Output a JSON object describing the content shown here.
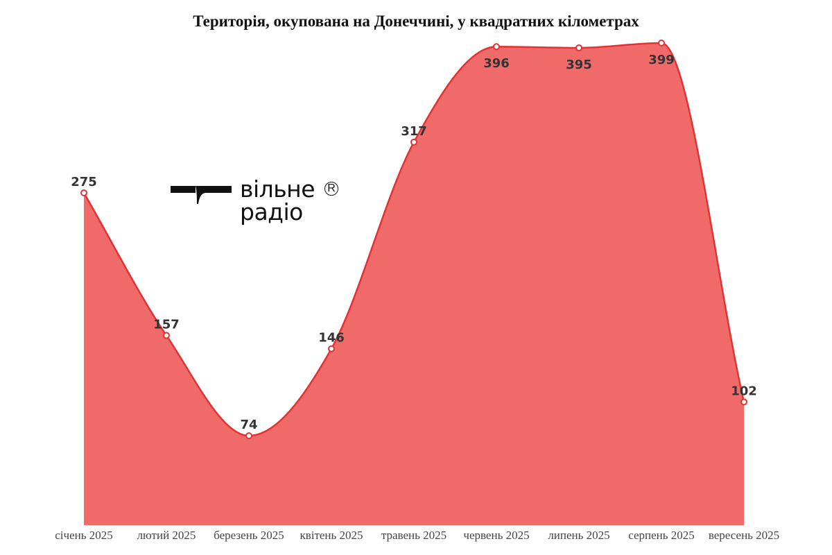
{
  "chart_data": {
    "type": "area",
    "title": "Територія, окупована на Донеччині, у квадратних кілометрах",
    "categories": [
      "січень 2025",
      "лютий 2025",
      "березень 2025",
      "квітень 2025",
      "травень 2025",
      "червень 2025",
      "липень 2025",
      "серпень 2025",
      "вересень 2025"
    ],
    "values": [
      275,
      157,
      74,
      146,
      317,
      396,
      395,
      399,
      102
    ],
    "xlabel": "",
    "ylabel": "",
    "ylim": [
      0,
      399
    ],
    "grid": false,
    "fill_color": "#f06a6a",
    "line_color": "#e03333"
  },
  "logo": {
    "line1": "вільне",
    "line2": "радіо",
    "mark": "R"
  }
}
